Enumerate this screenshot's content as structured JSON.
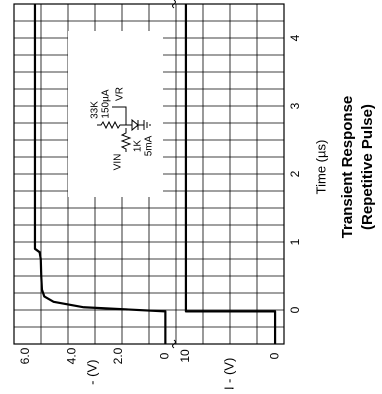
{
  "chart_data": {
    "type": "line",
    "orientation": "rotated-90-ccw",
    "title": "Transient Response",
    "subtitle": "(Repetitive Pulse)",
    "xlabel": "Time (µs)",
    "x_ticks": [
      0,
      1,
      2,
      3,
      4
    ],
    "xlim": [
      -0.5,
      4.5
    ],
    "grid": true,
    "panels": [
      {
        "name": "VR - (V)",
        "ylabel": "VR - (V)",
        "ylim": [
          -0.5,
          6.5
        ],
        "y_ticks": [
          0,
          2.0,
          4.0,
          6.0
        ],
        "y_tick_labels": [
          "0",
          "2.0",
          "4.0",
          "6.0"
        ],
        "series": [
          {
            "x": [
              -0.5,
              -0.02,
              0.04,
              0.12,
              0.2,
              0.3,
              0.5,
              0.75,
              0.85,
              0.9,
              2.0,
              4.5
            ],
            "y": [
              0,
              0,
              3.5,
              4.8,
              5.2,
              5.3,
              5.33,
              5.35,
              5.4,
              5.6,
              5.6,
              5.6
            ]
          }
        ]
      },
      {
        "name": "VIN - (V)",
        "ylabel": "VIN - (V)",
        "ylim": [
          -1,
          11
        ],
        "y_ticks": [
          0,
          10
        ],
        "y_tick_labels": [
          "0",
          "10"
        ],
        "series": [
          {
            "x": [
              -0.5,
              -0.02,
              -0.02,
              4.5
            ],
            "y": [
              0,
              0,
              10,
              10
            ]
          }
        ]
      }
    ],
    "inset_schematic": {
      "labels": [
        "VIN",
        "1K",
        "5mA",
        "33K",
        "150µA",
        "VR"
      ]
    }
  }
}
